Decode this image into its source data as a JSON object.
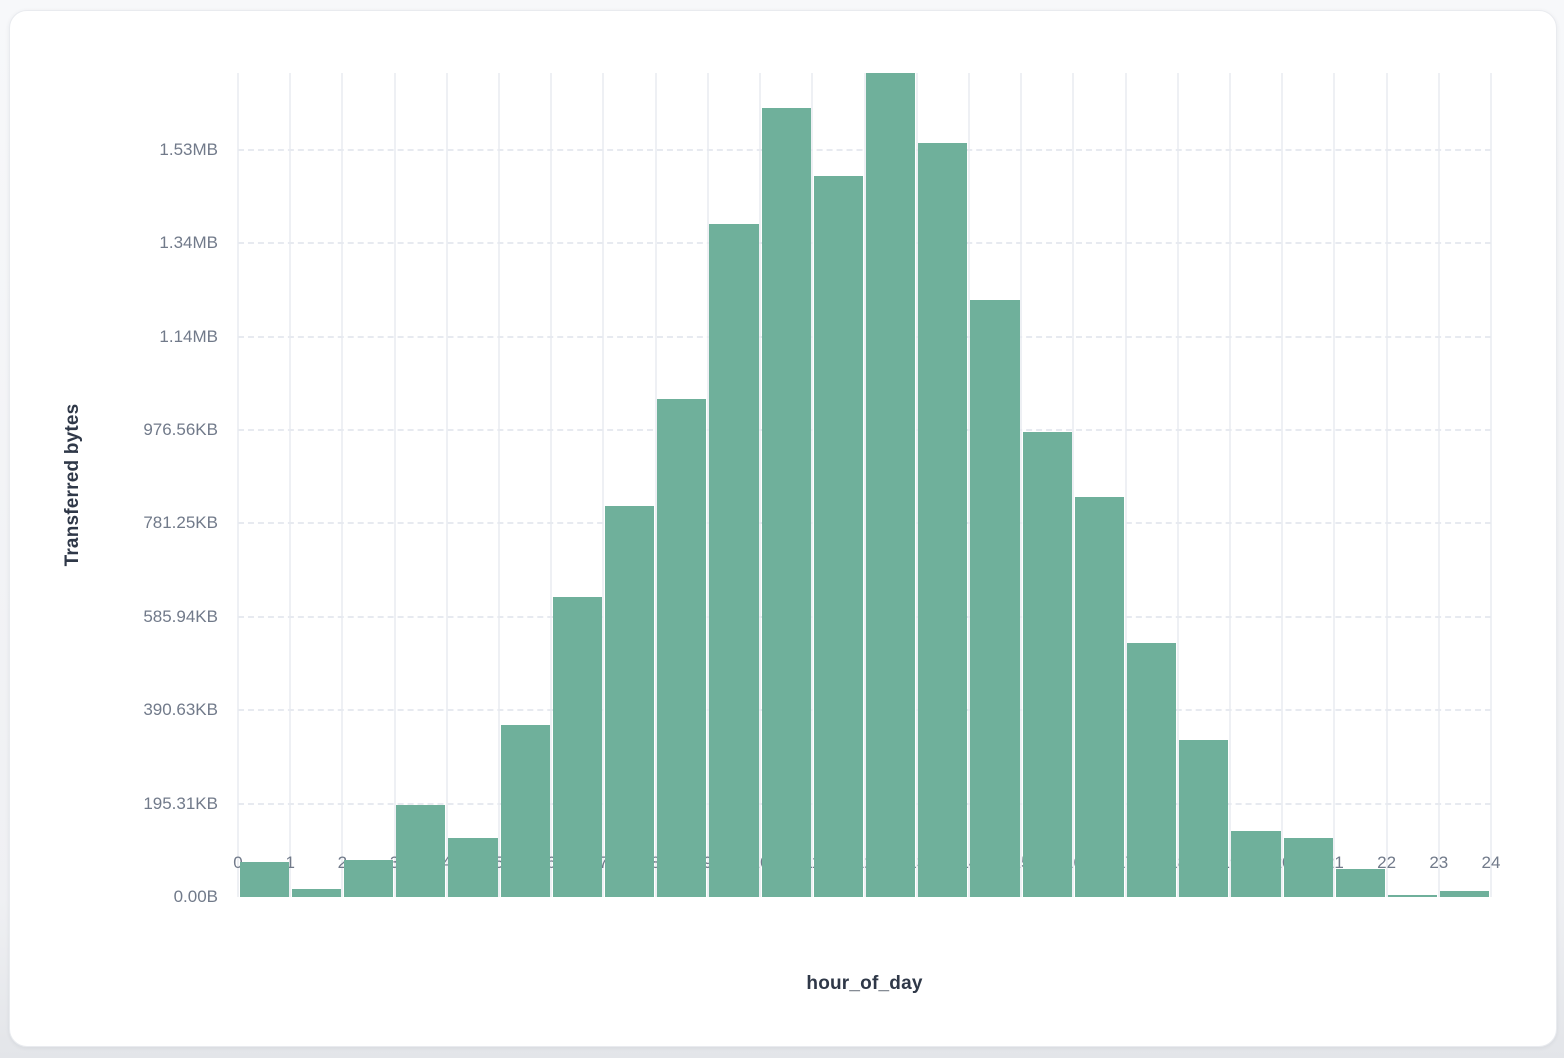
{
  "card": {
    "background": "#ffffff"
  },
  "chart_data": {
    "type": "bar",
    "title": "",
    "xlabel": "hour_of_day",
    "ylabel": "Transferred bytes",
    "bar_color": "#6fb09b",
    "grid": true,
    "legend": false,
    "x_bins": [
      0,
      1,
      2,
      3,
      4,
      5,
      6,
      7,
      8,
      9,
      10,
      11,
      12,
      13,
      14,
      15,
      16,
      17,
      18,
      19,
      20,
      21,
      22,
      23
    ],
    "values_bytes": [
      75000,
      17000,
      79000,
      197000,
      126000,
      369000,
      643000,
      838000,
      1067000,
      1442000,
      1690000,
      1545000,
      1764700,
      1615000,
      1279000,
      996000,
      856000,
      545000,
      336000,
      141000,
      126000,
      59000,
      4500,
      13000
    ],
    "y_axis_max_bytes": 1764700,
    "x_ticks": [
      "0",
      "1",
      "2",
      "3",
      "4",
      "5",
      "6",
      "7",
      "8",
      "9",
      "10",
      "11",
      "12",
      "13",
      "14",
      "15",
      "16",
      "17",
      "18",
      "19",
      "20",
      "21",
      "22",
      "23",
      "24"
    ],
    "y_ticks": [
      {
        "label": "0.00B",
        "value": 0
      },
      {
        "label": "195.31KB",
        "value": 200000
      },
      {
        "label": "390.63KB",
        "value": 400000
      },
      {
        "label": "585.94KB",
        "value": 600000
      },
      {
        "label": "781.25KB",
        "value": 800000
      },
      {
        "label": "976.56KB",
        "value": 1000000
      },
      {
        "label": "1.14MB",
        "value": 1200000
      },
      {
        "label": "1.34MB",
        "value": 1400000
      },
      {
        "label": "1.53MB",
        "value": 1600000
      }
    ]
  }
}
